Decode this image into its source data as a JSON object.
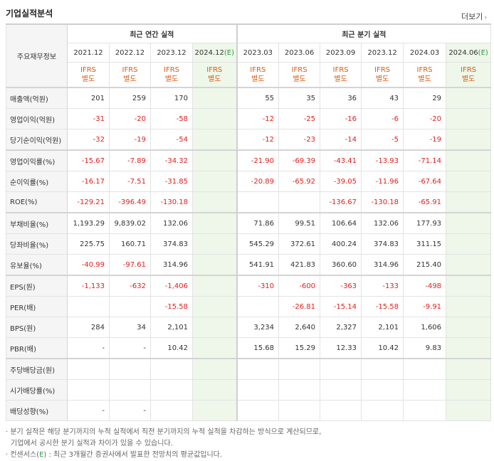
{
  "section_title": "기업실적분석",
  "more_label": "더보기",
  "more_arrow": "›",
  "row_header_label": "주요재무정보",
  "annual_group_label": "최근 연간 실적",
  "quarter_group_label": "최근 분기 실적",
  "annual_periods": [
    "2021.12",
    "2022.12",
    "2023.12",
    "2024.12"
  ],
  "quarter_periods": [
    "2023.03",
    "2023.06",
    "2023.09",
    "2023.12",
    "2024.03",
    "2024.06"
  ],
  "estimate_marker": "(E)",
  "ifrs_line1": "IFRS",
  "ifrs_line2": "별도",
  "rows": [
    {
      "label": "매출액(억원)",
      "values": [
        "201",
        "259",
        "170",
        "",
        "55",
        "35",
        "36",
        "43",
        "29",
        ""
      ]
    },
    {
      "label": "영업이익(억원)",
      "values": [
        "-31",
        "-20",
        "-58",
        "",
        "-12",
        "-25",
        "-16",
        "-6",
        "-20",
        ""
      ]
    },
    {
      "label": "당기순이익(억원)",
      "values": [
        "-32",
        "-19",
        "-54",
        "",
        "-12",
        "-23",
        "-14",
        "-5",
        "-19",
        ""
      ]
    },
    {
      "label": "영업이익률(%)",
      "values": [
        "-15.67",
        "-7.89",
        "-34.32",
        "",
        "-21.90",
        "-69.39",
        "-43.41",
        "-13.93",
        "-71.14",
        ""
      ]
    },
    {
      "label": "순이익률(%)",
      "values": [
        "-16.17",
        "-7.51",
        "-31.85",
        "",
        "-20.89",
        "-65.92",
        "-39.05",
        "-11.96",
        "-67.64",
        ""
      ]
    },
    {
      "label": "ROE(%)",
      "values": [
        "-129.21",
        "-396.49",
        "-130.18",
        "",
        "",
        "",
        "-136.67",
        "-130.18",
        "-65.91",
        ""
      ]
    },
    {
      "label": "부채비율(%)",
      "values": [
        "1,193.29",
        "9,839.02",
        "132.06",
        "",
        "71.86",
        "99.51",
        "106.64",
        "132.06",
        "177.93",
        ""
      ]
    },
    {
      "label": "당좌비율(%)",
      "values": [
        "225.75",
        "160.71",
        "374.83",
        "",
        "545.29",
        "372.61",
        "400.24",
        "374.83",
        "311.15",
        ""
      ]
    },
    {
      "label": "유보율(%)",
      "values": [
        "-40.99",
        "-97.61",
        "314.96",
        "",
        "541.91",
        "421.83",
        "360.60",
        "314.96",
        "215.40",
        ""
      ]
    },
    {
      "label": "EPS(원)",
      "values": [
        "-1,133",
        "-632",
        "-1,406",
        "",
        "-310",
        "-600",
        "-363",
        "-133",
        "-498",
        ""
      ]
    },
    {
      "label": "PER(배)",
      "values": [
        "",
        "",
        "-15.58",
        "",
        "",
        "-26.81",
        "-15.14",
        "-15.58",
        "-9.91",
        ""
      ]
    },
    {
      "label": "BPS(원)",
      "values": [
        "284",
        "34",
        "2,101",
        "",
        "3,234",
        "2,640",
        "2,327",
        "2,101",
        "1,606",
        ""
      ]
    },
    {
      "label": "PBR(배)",
      "values": [
        "-",
        "-",
        "10.42",
        "",
        "15.68",
        "15.29",
        "12.33",
        "10.42",
        "9.83",
        ""
      ]
    },
    {
      "label": "주당배당금(원)",
      "values": [
        "",
        "",
        "",
        "",
        "",
        "",
        "",
        "",
        "",
        ""
      ]
    },
    {
      "label": "시가배당률(%)",
      "values": [
        "",
        "",
        "",
        "",
        "",
        "",
        "",
        "",
        "",
        ""
      ]
    },
    {
      "label": "배당성향(%)",
      "values": [
        "-",
        "-",
        "",
        "",
        "",
        "",
        "",
        "",
        "",
        ""
      ]
    }
  ],
  "notes": [
    "· 분기 실적은 해당 분기까지의 누적 실적에서 직전 분기까지의 누적 실적을 차감하는 방식으로 계산되므로,",
    "기업에서 공시한 분기 실적과 차이가 있을 수 있습니다.",
    "· 컨센서스(",
    "E",
    ") : 최근 3개월간 증권사에서 발표한 전망치의 평균값입니다."
  ]
}
